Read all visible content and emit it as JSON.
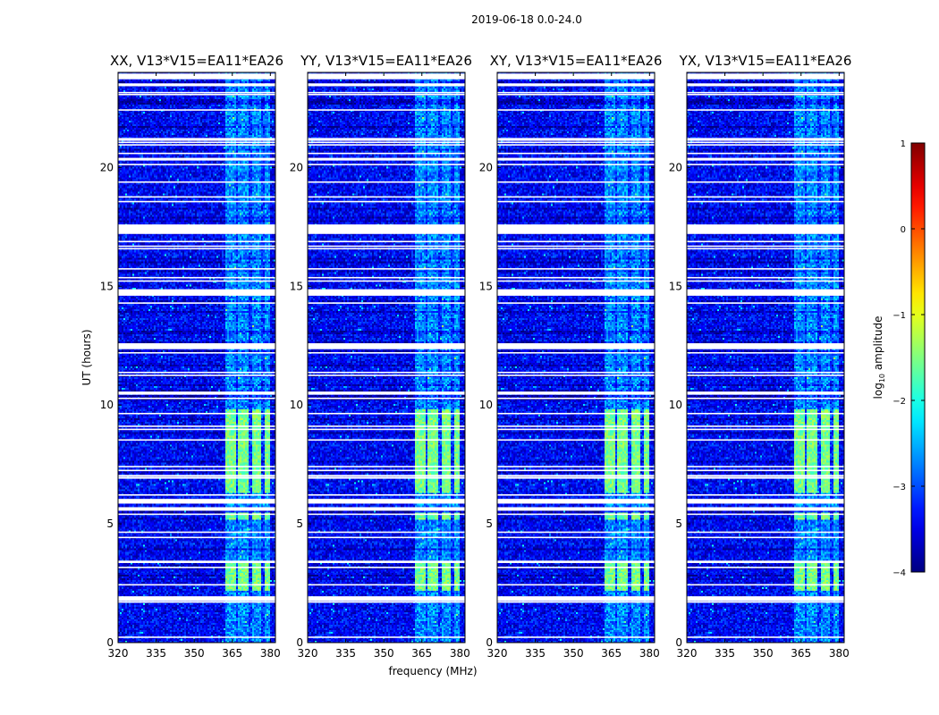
{
  "chart_data": {
    "type": "heatmap",
    "suptitle": "2019-06-18 0.0-24.0",
    "xlabel": "frequency (MHz)",
    "ylabel": "UT (hours)",
    "xlim": [
      320,
      382
    ],
    "ylim": [
      0,
      24
    ],
    "xticks": [
      320,
      335,
      350,
      365,
      380
    ],
    "xtick_labels": [
      "320",
      "335",
      "350",
      "365",
      "380"
    ],
    "yticks": [
      0,
      5,
      10,
      15,
      20
    ],
    "ytick_labels": [
      "0",
      "5",
      "10",
      "15",
      "20"
    ],
    "panels": [
      {
        "title": "XX, V13*V15=EA11*EA26"
      },
      {
        "title": "YY, V13*V15=EA11*EA26"
      },
      {
        "title": "XY, V13*V15=EA11*EA26"
      },
      {
        "title": "YX, V13*V15=EA11*EA26"
      }
    ],
    "colorbar": {
      "label": "log10 amplitude",
      "label_main": "log",
      "label_sub": "10",
      "label_rest": " amplitude",
      "range": [
        -4,
        1
      ],
      "ticks": [
        -4,
        -3,
        -2,
        -1,
        0,
        1
      ],
      "tick_labels": [
        "−4",
        "−3",
        "−2",
        "−1",
        "0",
        "1"
      ],
      "colormap": "jet"
    },
    "flagged_time_ranges_hours": [
      [
        23.75,
        23.95
      ],
      [
        17.2,
        17.6
      ],
      [
        14.6,
        14.85
      ],
      [
        12.35,
        12.6
      ],
      [
        5.85,
        6.05
      ],
      [
        5.55,
        5.7
      ],
      [
        3.35,
        3.45
      ],
      [
        1.75,
        1.95
      ]
    ],
    "strong_emission": {
      "freq_mhz": [
        362,
        380
      ],
      "subbands_mhz": [
        [
          362.5,
          366.5
        ],
        [
          367.5,
          371.5
        ],
        [
          372.5,
          376.5
        ],
        [
          377.5,
          380.5
        ]
      ],
      "bright_time_ranges_hours": [
        [
          6.3,
          9.8
        ],
        [
          5.2,
          5.5
        ],
        [
          2.2,
          3.4
        ]
      ],
      "peak_log10_amplitude": -1.3
    },
    "background_log10_amplitude": -3.4
  }
}
